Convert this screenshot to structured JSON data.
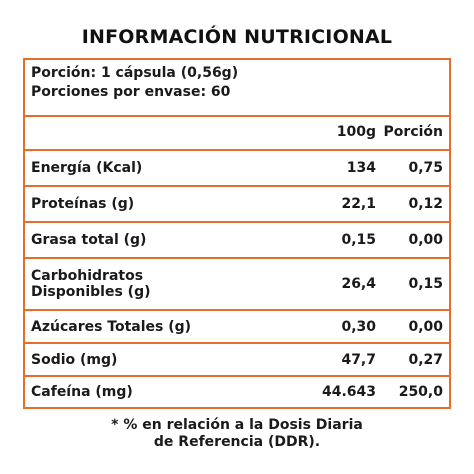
{
  "title": "INFORMACIÓN NUTRICIONAL",
  "serving": {
    "portion": "Porción: 1 cápsula (0,56g)",
    "servings_per_container": "Porciones por envase: 60"
  },
  "columns": {
    "per_100g": "100g",
    "per_portion": "Porción"
  },
  "rows": [
    {
      "label": "Energía (Kcal)",
      "per_100g": "134",
      "per_portion": "0,75"
    },
    {
      "label": "Proteínas (g)",
      "per_100g": "22,1",
      "per_portion": "0,12"
    },
    {
      "label": "Grasa total (g)",
      "per_100g": "0,15",
      "per_portion": "0,00"
    },
    {
      "label_line1": "Carbohidratos",
      "label_line2": "Disponibles (g)",
      "per_100g": "26,4",
      "per_portion": "0,15"
    },
    {
      "label": "Azúcares Totales (g)",
      "per_100g": "0,30",
      "per_portion": "0,00"
    },
    {
      "label": "Sodio (mg)",
      "per_100g": "47,7",
      "per_portion": "0,27"
    },
    {
      "label": "Cafeína (mg)",
      "per_100g": "44.643",
      "per_portion": "250,0"
    }
  ],
  "footnote": {
    "line1": "* % en relación a la Dosis Diaria",
    "line2": "de Referencia (DDR)."
  },
  "colors": {
    "border_accent": "#e36f2a",
    "text": "#1a1a1a"
  }
}
